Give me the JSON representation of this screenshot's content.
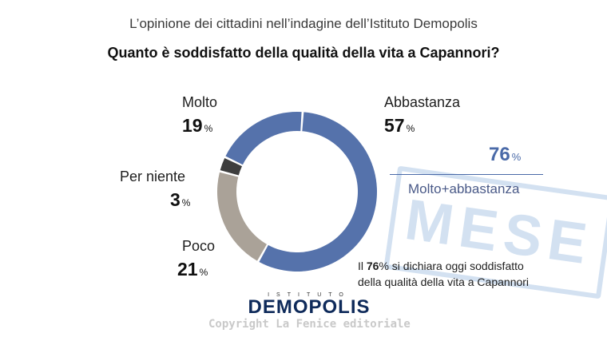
{
  "header": {
    "subtitle": "L’opinione dei cittadini nell’indagine dell’Istituto Demopolis",
    "title": "Quanto è soddisfatto della qualità della vita a Capannori?"
  },
  "chart_data": {
    "type": "pie",
    "donut": true,
    "categories": [
      "Abbastanza",
      "Poco",
      "Per niente",
      "Molto"
    ],
    "values": [
      57,
      21,
      3,
      19
    ],
    "unit": "%",
    "colors": [
      "#5572ab",
      "#aaa298",
      "#3e3e3e",
      "#5572ab"
    ]
  },
  "labels": {
    "molto": {
      "name": "Molto",
      "value": "19",
      "unit": "%"
    },
    "abbastanza": {
      "name": "Abbastanza",
      "value": "57",
      "unit": "%"
    },
    "per_niente": {
      "name": "Per niente",
      "value": "3",
      "unit": "%"
    },
    "poco": {
      "name": "Poco",
      "value": "21",
      "unit": "%"
    }
  },
  "summary": {
    "value": "76",
    "unit": "%",
    "label": "Molto+abbastanza"
  },
  "note": {
    "prefix": "Il ",
    "value": "76",
    "unit": "%",
    "rest_line1": " si dichiara oggi soddisfatto",
    "line2": "della qualità della vita a Capannori"
  },
  "logo": {
    "small": "ISTITUTO",
    "big": "DEMOPOLIS"
  },
  "watermark": "MESE",
  "copyright": "Copyright La Fenice editoriale"
}
